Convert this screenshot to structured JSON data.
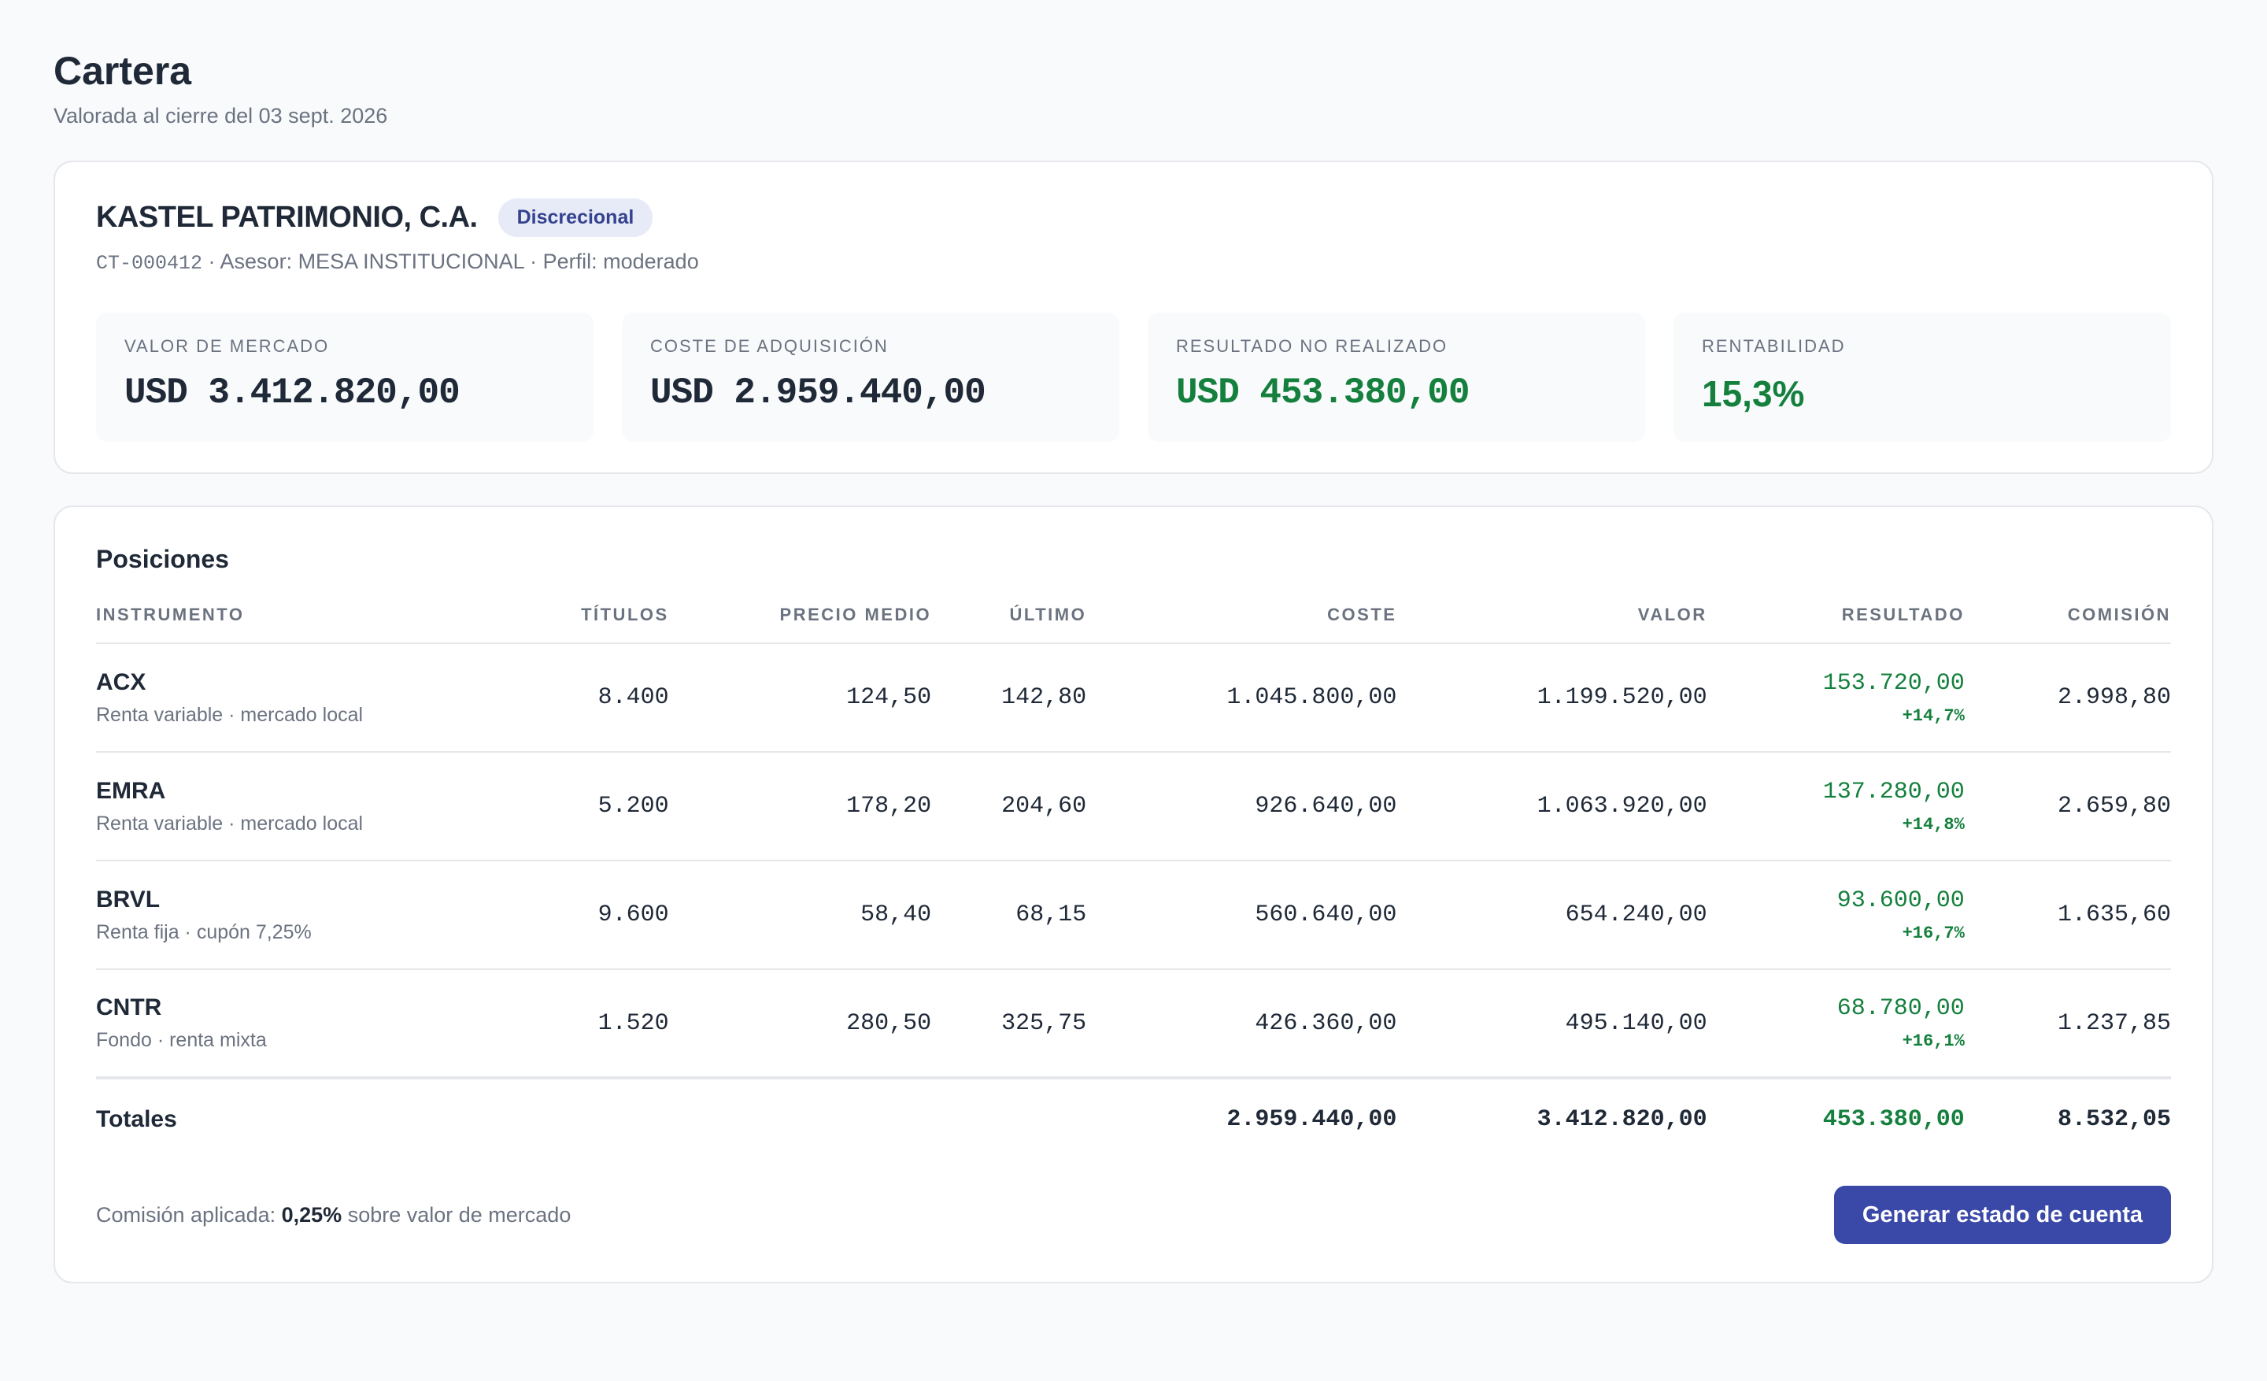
{
  "header": {
    "title": "Cartera",
    "subtitle": "Valorada al cierre del 03 sept. 2026"
  },
  "client": {
    "name": "KASTEL PATRIMONIO, C.A.",
    "badge": "Discrecional",
    "code": "CT-000412",
    "meta": " · Asesor: MESA INSTITUCIONAL · Perfil: moderado"
  },
  "kpis": [
    {
      "label": "Valor de mercado",
      "value": "USD 3.412.820,00"
    },
    {
      "label": "Coste de adquisición",
      "value": "USD 2.959.440,00"
    },
    {
      "label": "Resultado no realizado",
      "value": "USD 453.380,00"
    },
    {
      "label": "Rentabilidad",
      "value": "15,3%"
    }
  ],
  "positions": {
    "title": "Posiciones",
    "columns": [
      "Instrumento",
      "Títulos",
      "Precio medio",
      "Último",
      "Coste",
      "Valor",
      "Resultado",
      "Comisión"
    ],
    "rows": [
      {
        "name": "ACX",
        "desc": "Renta variable · mercado local",
        "titulos": "8.400",
        "precio_medio": "124,50",
        "ultimo": "142,80",
        "coste": "1.045.800,00",
        "valor": "1.199.520,00",
        "resultado": "153.720,00",
        "resultado_pct": "+14,7%",
        "comision": "2.998,80"
      },
      {
        "name": "EMRA",
        "desc": "Renta variable · mercado local",
        "titulos": "5.200",
        "precio_medio": "178,20",
        "ultimo": "204,60",
        "coste": "926.640,00",
        "valor": "1.063.920,00",
        "resultado": "137.280,00",
        "resultado_pct": "+14,8%",
        "comision": "2.659,80"
      },
      {
        "name": "BRVL",
        "desc": "Renta fija · cupón 7,25%",
        "titulos": "9.600",
        "precio_medio": "58,40",
        "ultimo": "68,15",
        "coste": "560.640,00",
        "valor": "654.240,00",
        "resultado": "93.600,00",
        "resultado_pct": "+16,7%",
        "comision": "1.635,60"
      },
      {
        "name": "CNTR",
        "desc": "Fondo · renta mixta",
        "titulos": "1.520",
        "precio_medio": "280,50",
        "ultimo": "325,75",
        "coste": "426.360,00",
        "valor": "495.140,00",
        "resultado": "68.780,00",
        "resultado_pct": "+16,1%",
        "comision": "1.237,85"
      }
    ],
    "totals": {
      "label": "Totales",
      "coste": "2.959.440,00",
      "valor": "3.412.820,00",
      "resultado": "453.380,00",
      "comision": "8.532,05"
    }
  },
  "footer": {
    "note_prefix": "Comisión aplicada: ",
    "note_rate": "0,25%",
    "note_suffix": " sobre valor de mercado",
    "button": "Generar estado de cuenta"
  },
  "colors": {
    "accent": "#3a48a8",
    "positive": "#15803d",
    "badge_bg": "#e7ebf7"
  }
}
